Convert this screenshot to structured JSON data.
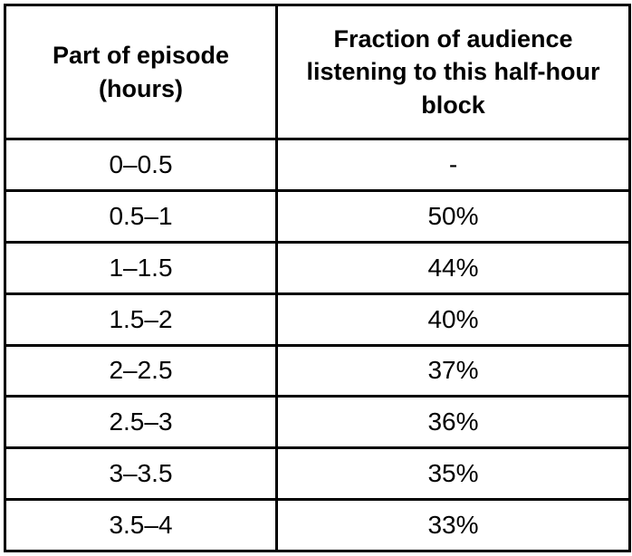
{
  "table": {
    "columns": [
      {
        "header": "Part of episode (hours)"
      },
      {
        "header": "Fraction of audience listening to this half-hour block"
      }
    ],
    "rows": [
      {
        "part": "0–0.5",
        "fraction": "-"
      },
      {
        "part": "0.5–1",
        "fraction": "50%"
      },
      {
        "part": "1–1.5",
        "fraction": "44%"
      },
      {
        "part": "1.5–2",
        "fraction": "40%"
      },
      {
        "part": "2–2.5",
        "fraction": "37%"
      },
      {
        "part": "2.5–3",
        "fraction": "36%"
      },
      {
        "part": "3–3.5",
        "fraction": "35%"
      },
      {
        "part": "3.5–4",
        "fraction": "33%"
      }
    ]
  },
  "chart_data": {
    "type": "table",
    "title": "",
    "columns": [
      "Part of episode (hours)",
      "Fraction of audience listening to this half-hour block"
    ],
    "categories": [
      "0–0.5",
      "0.5–1",
      "1–1.5",
      "1.5–2",
      "2–2.5",
      "2.5–3",
      "3–3.5",
      "3.5–4"
    ],
    "values": [
      null,
      50,
      44,
      40,
      37,
      36,
      35,
      33
    ],
    "value_unit": "%",
    "missing_value_display": "-"
  }
}
